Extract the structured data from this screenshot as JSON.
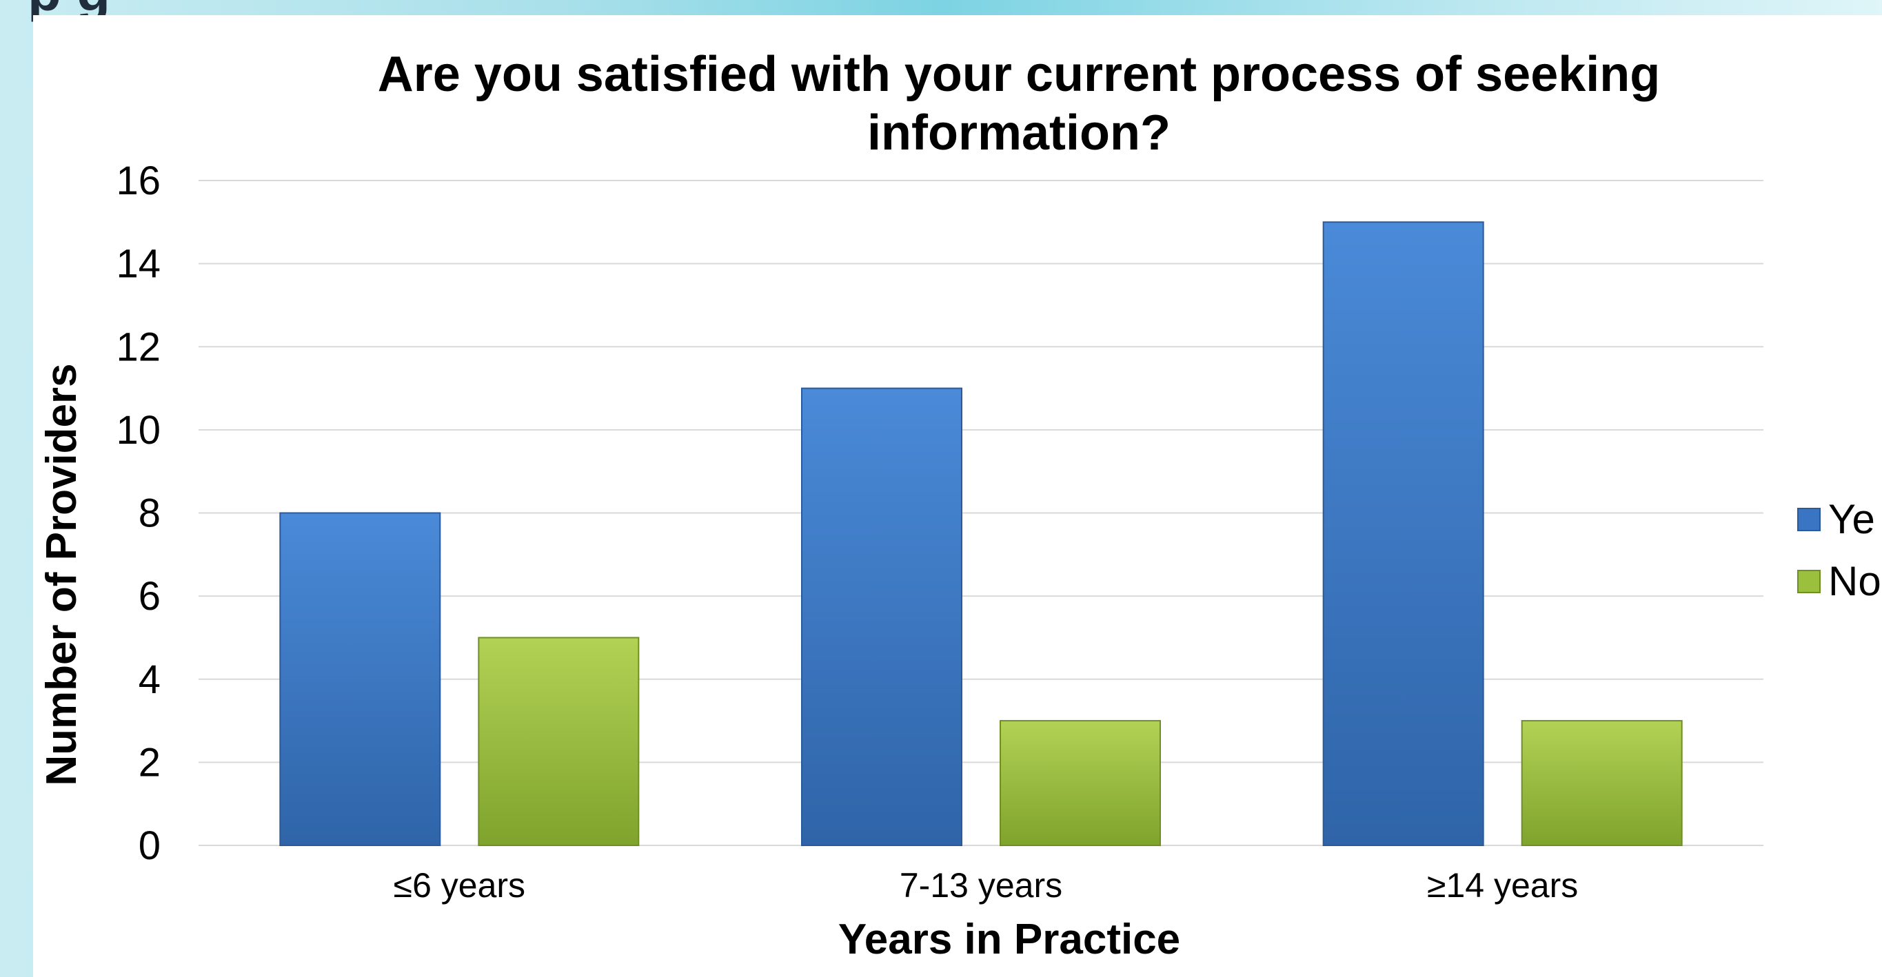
{
  "slide": {
    "heading_fragment": "p                    g"
  },
  "colors": {
    "yes": "#3a75c4",
    "no": "#9bc03e",
    "gridline": "#d9d9d9"
  },
  "chart_data": {
    "type": "bar",
    "title_lines": [
      "Are you satisfied with your current process of seeking",
      "information?"
    ],
    "xlabel": "Years in Practice",
    "ylabel": "Number of Providers",
    "categories": [
      "≤6 years",
      "7-13 years",
      "≥14 years"
    ],
    "series": [
      {
        "name": "Ye",
        "values": [
          8,
          11,
          15
        ]
      },
      {
        "name": "No",
        "values": [
          5,
          3,
          3
        ]
      }
    ],
    "ylim": [
      0,
      16
    ],
    "yticks": [
      "0",
      "2",
      "4",
      "6",
      "8",
      "10",
      "12",
      "14",
      "16"
    ],
    "grid": true,
    "legend_position": "right"
  }
}
